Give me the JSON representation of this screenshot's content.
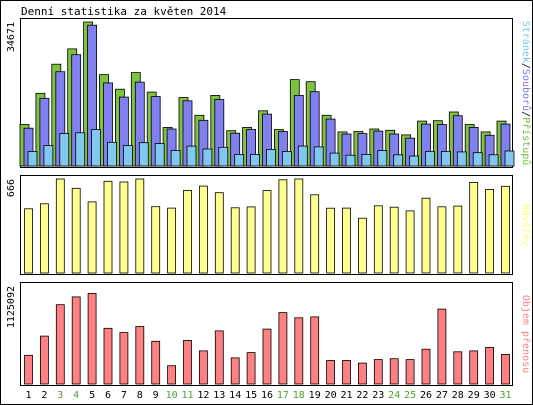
{
  "chart_data": {
    "type": "bar",
    "title": "Denní statistika za květen 2014",
    "days": [
      "1",
      "2",
      "3",
      "4",
      "5",
      "6",
      "7",
      "8",
      "9",
      "10",
      "11",
      "12",
      "13",
      "14",
      "15",
      "16",
      "17",
      "18",
      "19",
      "20",
      "21",
      "22",
      "23",
      "24",
      "25",
      "26",
      "27",
      "28",
      "29",
      "30",
      "31"
    ],
    "weekend_days": [
      "3",
      "4",
      "10",
      "11",
      "17",
      "18",
      "24",
      "25",
      "31"
    ],
    "panels": [
      {
        "key": "traffic",
        "max_label": "34671",
        "ymax": 34671,
        "right_label": [
          "Stránek",
          "/",
          "Souborů",
          "/",
          "Přístupů"
        ],
        "right_label_colors": [
          "#6dc8f0",
          "#000000",
          "#7b7bf0",
          "#000000",
          "#6ec23c"
        ],
        "series": [
          {
            "name": "Přístupů",
            "color": "#7fc241",
            "values": [
              10000,
              17500,
              24500,
              28200,
              34671,
              22000,
              18500,
              22500,
              17800,
              9300,
              16500,
              12200,
              17000,
              8500,
              9300,
              13300,
              8800,
              20800,
              20300,
              12200,
              8200,
              8300,
              8900,
              8600,
              7500,
              10800,
              10900,
              13000,
              10000,
              8200,
              10800
            ]
          },
          {
            "name": "Souborů",
            "color": "#8080f0",
            "values": [
              9100,
              16300,
              22700,
              26800,
              33900,
              20000,
              16600,
              20200,
              16700,
              8900,
              15700,
              11000,
              16000,
              7900,
              8800,
              12500,
              8300,
              17000,
              17900,
              11300,
              7700,
              7800,
              8400,
              7700,
              6700,
              10100,
              10000,
              12100,
              9300,
              7400,
              10100
            ]
          },
          {
            "name": "Stránek",
            "color": "#80c8f0",
            "values": [
              3500,
              4900,
              7800,
              8000,
              8800,
              5700,
              4900,
              5600,
              5400,
              3700,
              4800,
              4100,
              4500,
              2800,
              2800,
              4000,
              3500,
              4800,
              4600,
              3100,
              2600,
              2800,
              3700,
              2700,
              2400,
              3500,
              3500,
              3400,
              3200,
              2700,
              3600
            ]
          }
        ]
      },
      {
        "key": "visits",
        "max_label": "666",
        "ymax": 666,
        "right_label": [
          "Návštěv"
        ],
        "right_label_colors": [
          "#ffff70"
        ],
        "series": [
          {
            "name": "Návštěv",
            "color": "#ffff90",
            "values": [
              455,
              490,
              666,
              600,
              504,
              650,
              645,
              666,
              470,
              460,
              585,
              616,
              569,
              462,
              468,
              584,
              660,
              666,
              554,
              459,
              460,
              388,
              476,
              466,
              440,
              530,
              469,
              474,
              642,
              592,
              614
            ]
          }
        ]
      },
      {
        "key": "kbytes",
        "max_label": "1125092",
        "ymax": 1125092,
        "right_label": [
          "Objem přenosu"
        ],
        "right_label_colors": [
          "#ff8080"
        ],
        "series": [
          {
            "name": "Objem přenosu",
            "color": "#ff8080",
            "values": [
              330000,
              550000,
              910000,
              1000000,
              1040000,
              640000,
              590000,
              660000,
              490000,
              210000,
              500000,
              380000,
              610000,
              300000,
              360000,
              630000,
              820000,
              760000,
              770000,
              270000,
              270000,
              240000,
              280000,
              290000,
              280000,
              400000,
              860000,
              370000,
              380000,
              420000,
              340000
            ]
          }
        ]
      }
    ]
  }
}
